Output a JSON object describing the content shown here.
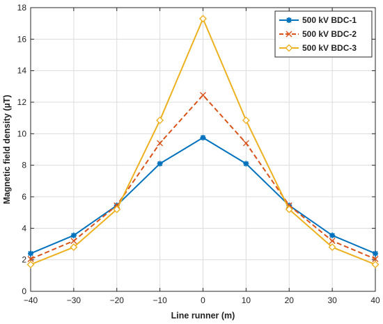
{
  "chart_data": {
    "type": "line",
    "xlabel": "Line runner (m)",
    "ylabel": "Magnetic field density (µT)",
    "xlim": [
      -40,
      40
    ],
    "ylim": [
      0,
      18
    ],
    "x": [
      -40,
      -30,
      -20,
      -10,
      0,
      10,
      20,
      30,
      40
    ],
    "x_tick_labels": [
      "−40",
      "−30",
      "−20",
      "−10",
      "0",
      "10",
      "20",
      "30",
      "40"
    ],
    "y_ticks": [
      0,
      2,
      4,
      6,
      8,
      10,
      12,
      14,
      16,
      18
    ],
    "y_tick_labels": [
      "0",
      "2",
      "4",
      "6",
      "8",
      "10",
      "12",
      "14",
      "16",
      "18"
    ],
    "grid": true,
    "legend_position": "top-right",
    "series": [
      {
        "name": "500 kV BDC-1",
        "color": "#0072BD",
        "line_style": "solid",
        "marker": "asterisk",
        "values": [
          2.4,
          3.55,
          5.45,
          8.1,
          9.75,
          8.1,
          5.45,
          3.55,
          2.4
        ]
      },
      {
        "name": "500 kV BDC-2",
        "color": "#D95319",
        "line_style": "dashed",
        "marker": "cross",
        "values": [
          2.05,
          3.2,
          5.45,
          9.4,
          12.45,
          9.4,
          5.45,
          3.2,
          2.05
        ]
      },
      {
        "name": "500 kV BDC-3",
        "color": "#EDB120",
        "line_style": "solid",
        "marker": "diamond",
        "values": [
          1.7,
          2.8,
          5.2,
          10.85,
          17.3,
          10.85,
          5.2,
          2.8,
          1.7
        ]
      }
    ]
  }
}
